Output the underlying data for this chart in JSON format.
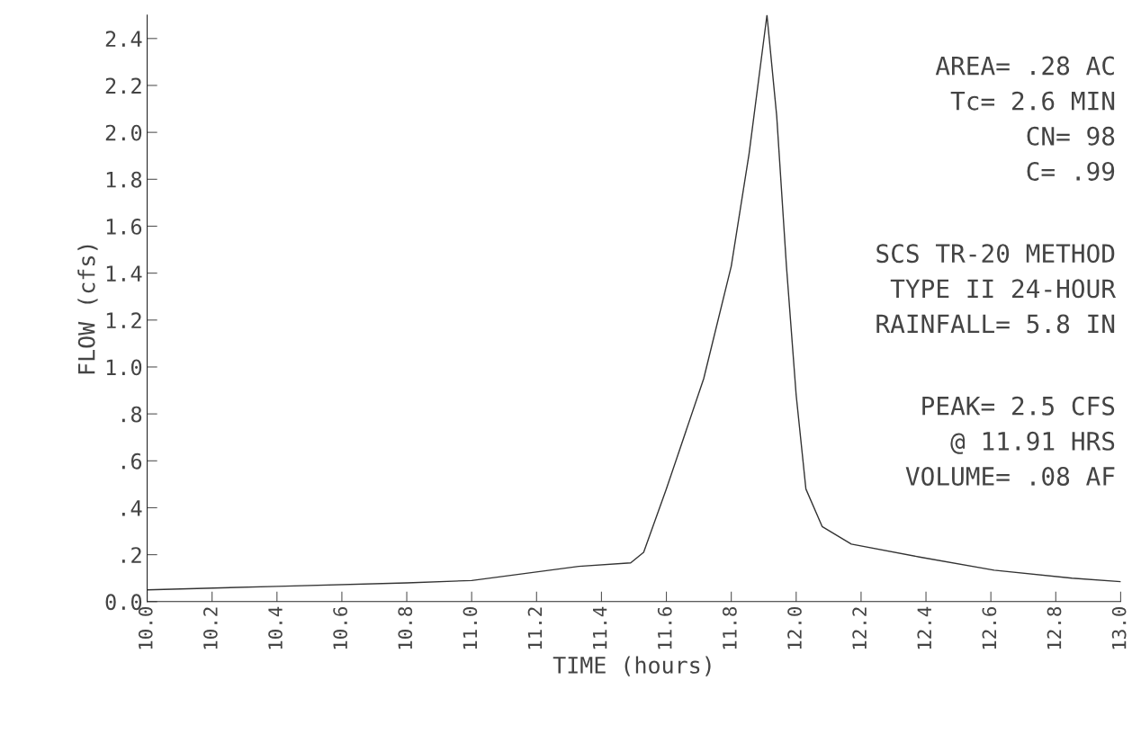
{
  "chart_data": {
    "type": "line",
    "xlabel": "TIME (hours)",
    "ylabel": "FLOW (cfs)",
    "series": [
      {
        "color": "#333333",
        "x": [
          10.0,
          10.4,
          10.8,
          11.0,
          11.33,
          11.49,
          11.53,
          11.6,
          11.715,
          11.8,
          11.855,
          11.91,
          11.94,
          11.97,
          12.0,
          12.03,
          12.08,
          12.17,
          12.38,
          12.61,
          12.85,
          13.0
        ],
        "values": [
          0.05,
          0.065,
          0.08,
          0.09,
          0.15,
          0.165,
          0.21,
          0.48,
          0.95,
          1.43,
          1.91,
          2.5,
          2.07,
          1.43,
          0.88,
          0.48,
          0.32,
          0.245,
          0.19,
          0.134,
          0.1,
          0.085
        ]
      }
    ],
    "xlim": [
      10.0,
      13.0
    ],
    "xticks": [
      {
        "value": 10.0,
        "label": "10.0"
      },
      {
        "value": 10.2,
        "label": "10.2"
      },
      {
        "value": 10.4,
        "label": "10.4"
      },
      {
        "value": 10.6,
        "label": "10.6"
      },
      {
        "value": 10.8,
        "label": "10.8"
      },
      {
        "value": 11.0,
        "label": "11.0"
      },
      {
        "value": 11.2,
        "label": "11.2"
      },
      {
        "value": 11.4,
        "label": "11.4"
      },
      {
        "value": 11.6,
        "label": "11.6"
      },
      {
        "value": 11.8,
        "label": "11.8"
      },
      {
        "value": 12.0,
        "label": "12.0"
      },
      {
        "value": 12.2,
        "label": "12.2"
      },
      {
        "value": 12.4,
        "label": "12.4"
      },
      {
        "value": 12.6,
        "label": "12.6"
      },
      {
        "value": 12.8,
        "label": "12.8"
      },
      {
        "value": 13.0,
        "label": "13.0"
      }
    ],
    "ylim": [
      0,
      2.5
    ],
    "yticks": [
      {
        "value": 0,
        "label": "0.0"
      },
      {
        "value": 0.2,
        "label": ".2"
      },
      {
        "value": 0.4,
        "label": ".4"
      },
      {
        "value": 0.6,
        "label": ".6"
      },
      {
        "value": 0.8,
        "label": ".8"
      },
      {
        "value": 1.0,
        "label": "1.0"
      },
      {
        "value": 1.2,
        "label": "1.2"
      },
      {
        "value": 1.4,
        "label": "1.4"
      },
      {
        "value": 1.6,
        "label": "1.6"
      },
      {
        "value": 1.8,
        "label": "1.8"
      },
      {
        "value": 2.0,
        "label": "2.0"
      },
      {
        "value": 2.2,
        "label": "2.2"
      },
      {
        "value": 2.4,
        "label": "2.4"
      }
    ],
    "annotations": [
      "AREA= .28 AC",
      "Tc= 2.6 MIN",
      "CN= 98",
      "C= .99",
      "SCS TR-20 METHOD",
      "TYPE II 24-HOUR",
      "RAINFALL= 5.8 IN",
      "PEAK= 2.5 CFS",
      "@ 11.91 HRS",
      "VOLUME= .08 AF"
    ],
    "grid": false,
    "legend": false
  }
}
